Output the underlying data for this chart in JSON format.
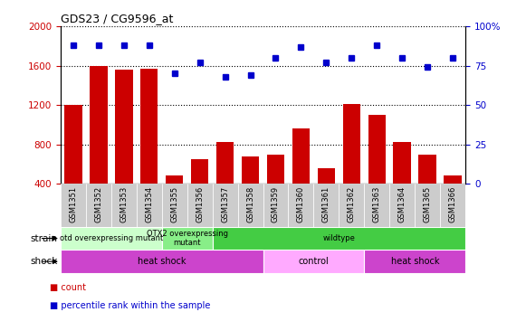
{
  "title": "GDS23 / CG9596_at",
  "samples": [
    "GSM1351",
    "GSM1352",
    "GSM1353",
    "GSM1354",
    "GSM1355",
    "GSM1356",
    "GSM1357",
    "GSM1358",
    "GSM1359",
    "GSM1360",
    "GSM1361",
    "GSM1362",
    "GSM1363",
    "GSM1364",
    "GSM1365",
    "GSM1366"
  ],
  "counts": [
    1200,
    1600,
    1560,
    1570,
    480,
    650,
    820,
    680,
    700,
    960,
    560,
    1210,
    1100,
    820,
    700,
    480
  ],
  "percentiles": [
    88,
    88,
    88,
    88,
    70,
    77,
    68,
    69,
    80,
    87,
    77,
    80,
    88,
    80,
    74,
    80
  ],
  "left_ylim": [
    400,
    2000
  ],
  "left_yticks": [
    400,
    800,
    1200,
    1600,
    2000
  ],
  "right_ylim": [
    0,
    100
  ],
  "right_yticks": [
    0,
    25,
    50,
    75,
    100
  ],
  "right_yticklabels": [
    "0",
    "25",
    "50",
    "75",
    "100%"
  ],
  "bar_color": "#cc0000",
  "dot_color": "#0000cc",
  "plot_bg": "#ffffff",
  "xtick_bg": "#cccccc",
  "strain_labels": [
    {
      "text": "otd overexpressing mutant",
      "start": 0,
      "end": 3,
      "color": "#ccffcc"
    },
    {
      "text": "OTX2 overexpressing\nmutant",
      "start": 4,
      "end": 5,
      "color": "#88ee88"
    },
    {
      "text": "wildtype",
      "start": 6,
      "end": 15,
      "color": "#44cc44"
    }
  ],
  "shock_labels": [
    {
      "text": "heat shock",
      "start": 0,
      "end": 7,
      "color": "#cc44cc"
    },
    {
      "text": "control",
      "start": 8,
      "end": 11,
      "color": "#ffaaff"
    },
    {
      "text": "heat shock",
      "start": 12,
      "end": 15,
      "color": "#cc44cc"
    }
  ],
  "left_label_color": "#cc0000",
  "right_label_color": "#0000cc",
  "legend_count_color": "#cc0000",
  "legend_dot_color": "#0000cc"
}
